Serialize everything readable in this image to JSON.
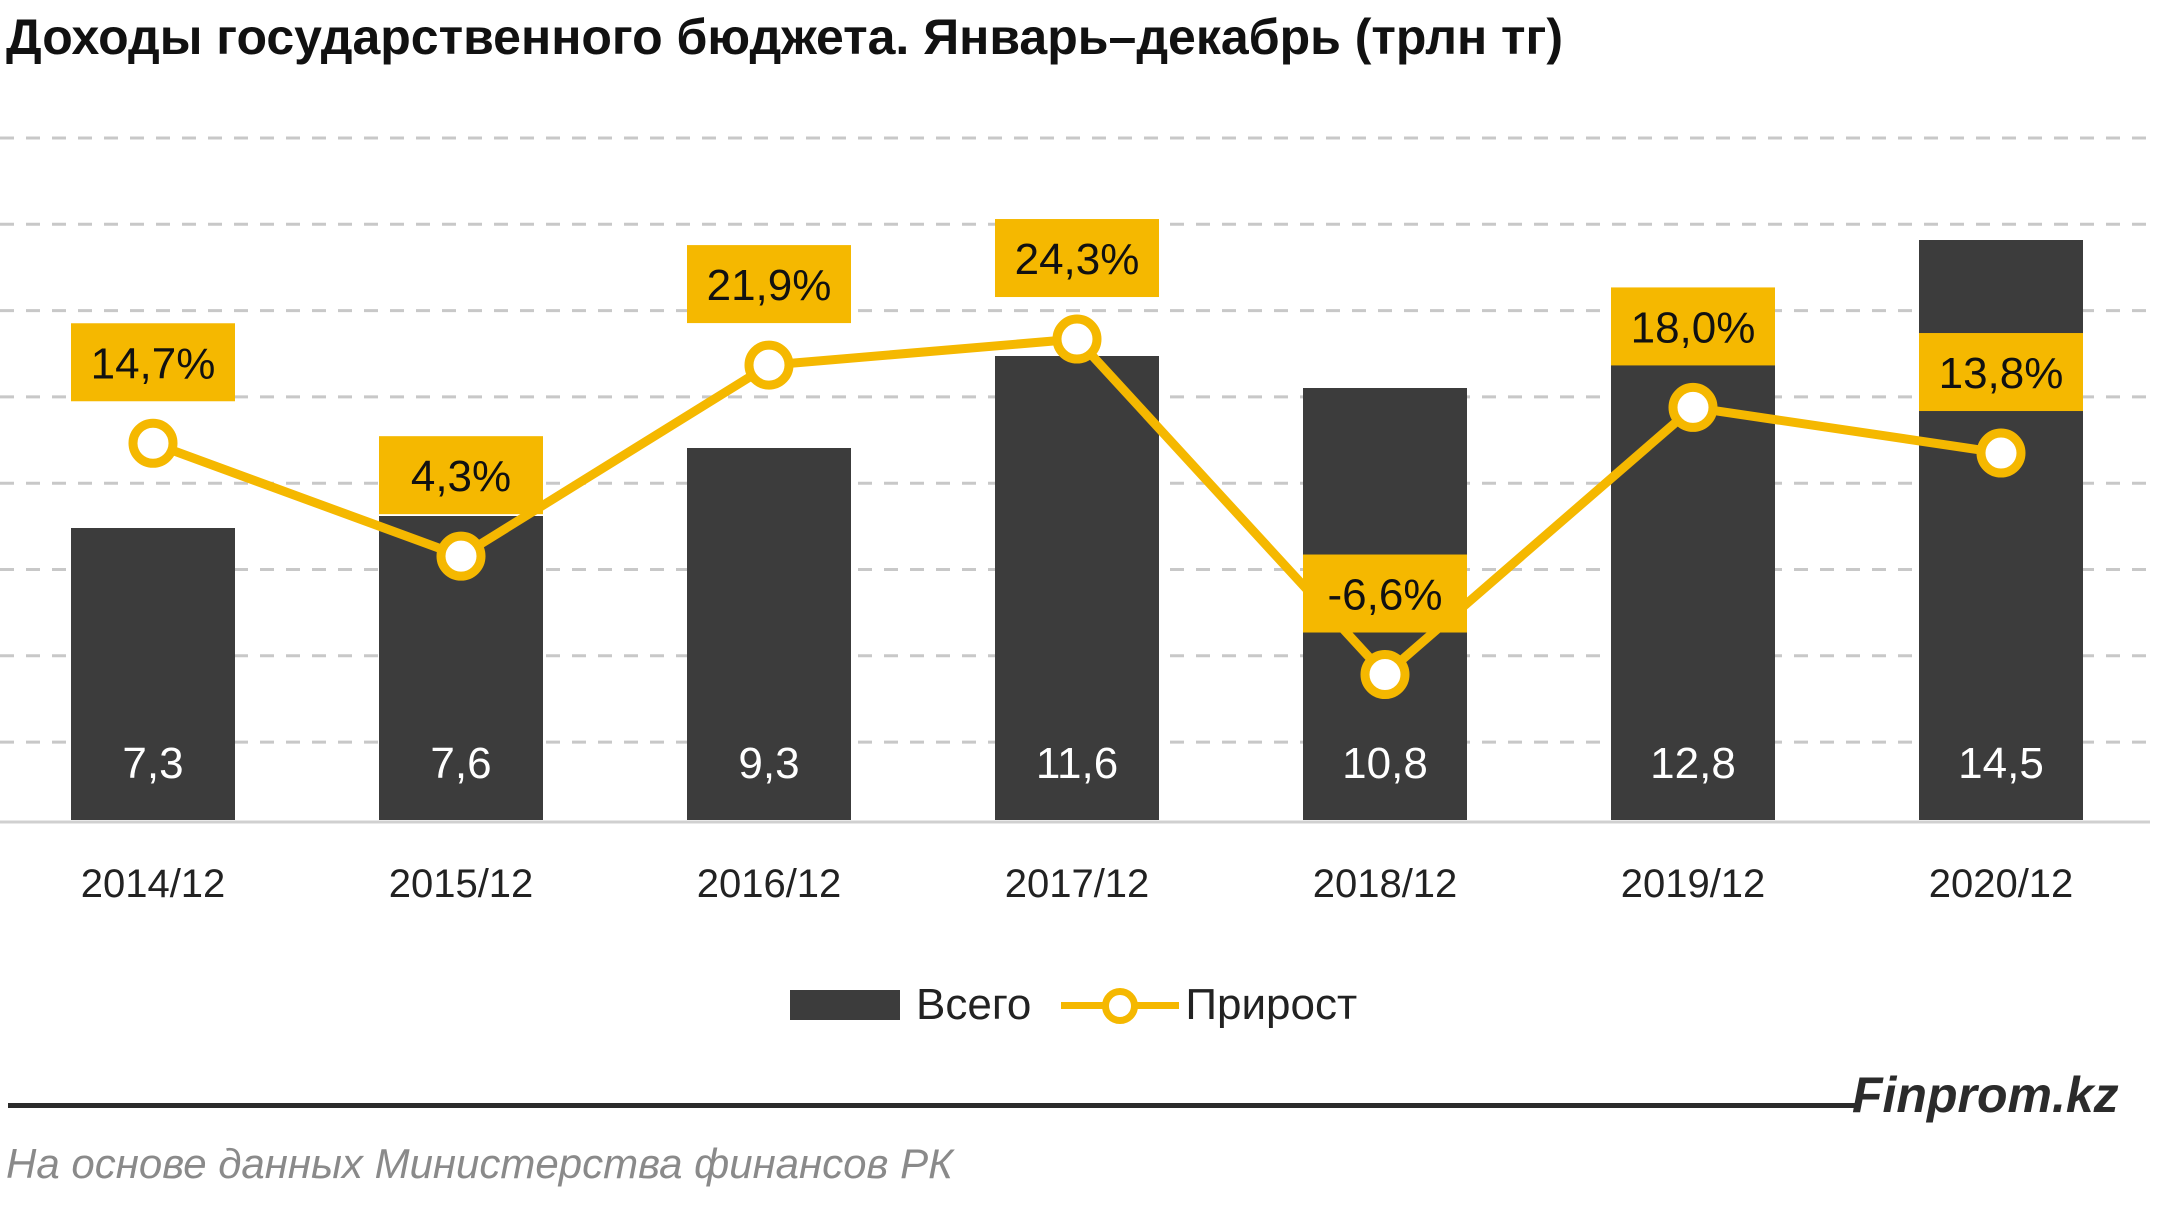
{
  "title": "Доходы государственного бюджета. Январь–декабрь (трлн тг)",
  "chart_data": {
    "type": "bar+line",
    "categories": [
      "2014/12",
      "2015/12",
      "2016/12",
      "2017/12",
      "2018/12",
      "2019/12",
      "2020/12"
    ],
    "series": [
      {
        "name": "Всего",
        "type": "bar",
        "values": [
          7.3,
          7.6,
          9.3,
          11.6,
          10.8,
          12.8,
          14.5
        ],
        "labels": [
          "7,3",
          "7,6",
          "9,3",
          "11,6",
          "10,8",
          "12,8",
          "14,5"
        ]
      },
      {
        "name": "Прирост",
        "type": "line",
        "values": [
          14.7,
          4.3,
          21.9,
          24.3,
          -6.6,
          18.0,
          13.8
        ],
        "labels": [
          "14,7%",
          "4,3%",
          "21,9%",
          "24,3%",
          "-6,6%",
          "18,0%",
          "13,8%"
        ]
      }
    ],
    "bar_axis_range": [
      0,
      16
    ],
    "line_axis_range": [
      -20,
      50
    ],
    "grid": true,
    "legend_position": "bottom",
    "colors": {
      "bar": "#3c3c3c",
      "line": "#f5b800",
      "label_box": "#f5b800",
      "grid": "#c8c8c8"
    }
  },
  "legend": {
    "bar_label": "Всего",
    "line_label": "Прирост"
  },
  "footer": {
    "brand": "Finprom.kz",
    "source": "На основе данных Министерства финансов РК"
  }
}
